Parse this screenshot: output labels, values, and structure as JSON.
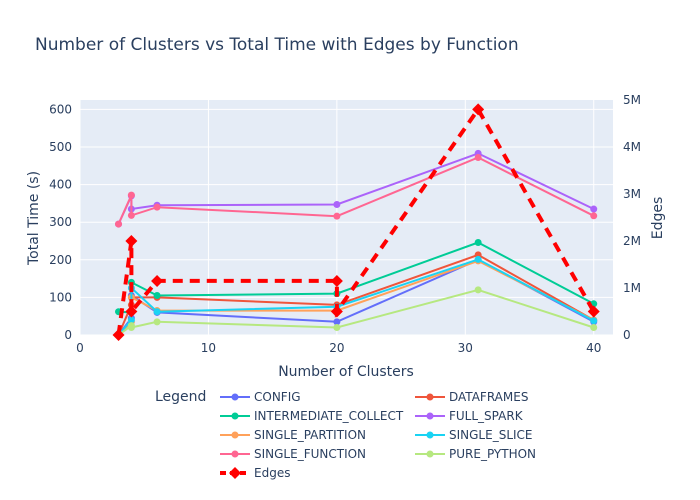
{
  "chart_data": {
    "type": "line",
    "title": "Number of Clusters vs Total Time with Edges by Function",
    "xlabel": "Number of Clusters",
    "ylabel": "Total Time (s)",
    "y2label": "Edges",
    "xlim": [
      0,
      41.5
    ],
    "ylim": [
      0,
      625
    ],
    "y2lim": [
      0,
      5000000
    ],
    "x_ticks": [
      0,
      10,
      20,
      30,
      40
    ],
    "y_ticks": [
      0,
      100,
      200,
      300,
      400,
      500,
      600
    ],
    "y2_ticks": [
      {
        "value": 0,
        "label": "0"
      },
      {
        "value": 1000000,
        "label": "1M"
      },
      {
        "value": 2000000,
        "label": "2M"
      },
      {
        "value": 3000000,
        "label": "3M"
      },
      {
        "value": 4000000,
        "label": "4M"
      },
      {
        "value": 5000000,
        "label": "5M"
      }
    ],
    "grid": true,
    "legend_title": "Legend",
    "legend_placement": "bottom",
    "series": [
      {
        "name": "CONFIG",
        "color": "#636efa",
        "axis": "y",
        "x": [
          3,
          4,
          4,
          6,
          20,
          31,
          40
        ],
        "y": [
          0,
          45,
          105,
          60,
          35,
          200,
          35
        ]
      },
      {
        "name": "DATAFRAMES",
        "color": "#ef553b",
        "axis": "y",
        "x": [
          3,
          4,
          4,
          6,
          20,
          31,
          40
        ],
        "y": [
          0,
          80,
          100,
          100,
          80,
          213,
          40
        ]
      },
      {
        "name": "INTERMEDIATE_COLLECT",
        "color": "#00cc96",
        "axis": "y",
        "x": [
          3,
          4,
          4,
          6,
          20,
          31,
          40
        ],
        "y": [
          62,
          60,
          140,
          105,
          110,
          246,
          83
        ]
      },
      {
        "name": "FULL_SPARK",
        "color": "#ab63fa",
        "axis": "y",
        "x": [
          3,
          4,
          4,
          6,
          20,
          31,
          40
        ],
        "y": [
          295,
          370,
          335,
          345,
          347,
          483,
          335
        ]
      },
      {
        "name": "SINGLE_PARTITION",
        "color": "#ffa15a",
        "axis": "y",
        "x": [
          3,
          4,
          4,
          6,
          20,
          31,
          40
        ],
        "y": [
          0,
          35,
          100,
          65,
          65,
          197,
          40
        ]
      },
      {
        "name": "SINGLE_SLICE",
        "color": "#19d3f3",
        "axis": "y",
        "x": [
          3,
          4,
          4,
          6,
          20,
          31,
          40
        ],
        "y": [
          0,
          40,
          125,
          62,
          75,
          201,
          38
        ]
      },
      {
        "name": "SINGLE_FUNCTION",
        "color": "#ff6692",
        "axis": "y",
        "x": [
          3,
          4,
          4,
          6,
          20,
          31,
          40
        ],
        "y": [
          295,
          372,
          318,
          340,
          316,
          472,
          317
        ]
      },
      {
        "name": "PURE_PYTHON",
        "color": "#b6e880",
        "axis": "y",
        "x": [
          3,
          4,
          4,
          6,
          20,
          31,
          40
        ],
        "y": [
          0,
          25,
          20,
          35,
          20,
          120,
          20
        ]
      },
      {
        "name": "Edges",
        "color": "#ff0000",
        "axis": "y2",
        "dash": true,
        "marker": "diamond",
        "x": [
          3,
          4,
          4,
          6,
          20,
          20,
          31,
          40
        ],
        "y": [
          0,
          2000000,
          500000,
          1150000,
          1150000,
          500000,
          4800000,
          500000
        ]
      }
    ]
  }
}
